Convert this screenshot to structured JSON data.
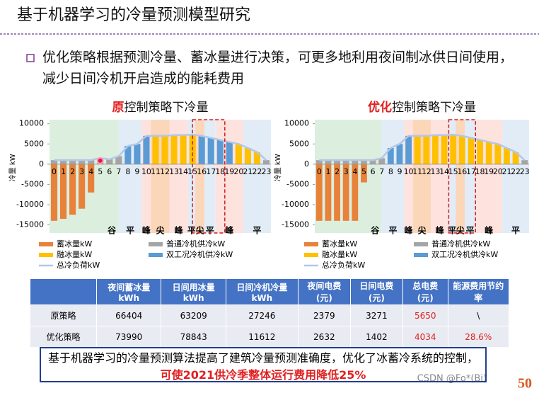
{
  "slide_title": "基于机器学习的冷量预测模型研究",
  "bullet": "优化策略根据预测冷量、蓄冰量进行决策，可更多地利用夜间制冰供日间使用，减少日间冷机开启造成的能耗费用",
  "chart_data": [
    {
      "type": "bar",
      "title_highlight": "原",
      "title": "控制策略下冷量",
      "y_label": "冷量 kW",
      "categories": [
        "0",
        "1",
        "2",
        "3",
        "4",
        "5",
        "6",
        "7",
        "8",
        "9",
        "10",
        "11",
        "12",
        "13",
        "14",
        "15",
        "16",
        "17",
        "18",
        "19",
        "20",
        "21",
        "22",
        "23"
      ],
      "ylim": [
        -17000,
        11000
      ],
      "yticks": [
        10000,
        5000,
        0,
        -5000,
        -10000,
        -15000
      ],
      "period_labels": [
        "谷",
        "平",
        "峰",
        "尖",
        "峰",
        "平",
        "尖",
        "平",
        "峰",
        "平"
      ],
      "series": [
        {
          "name": "蓄冰量kW",
          "color": "#e8823a",
          "kind": "bar",
          "values": [
            -14000,
            -13500,
            -12500,
            -11000,
            -7000,
            null,
            null,
            null,
            null,
            null,
            null,
            null,
            null,
            null,
            null,
            null,
            null,
            null,
            null,
            null,
            null,
            null,
            null,
            null
          ]
        },
        {
          "name": "普通冷机供冷kW",
          "color": "#a5a5a5",
          "kind": "bar",
          "values": [
            1000,
            1000,
            1000,
            1000,
            1000,
            1500,
            1200,
            2000,
            null,
            null,
            null,
            null,
            null,
            null,
            null,
            null,
            null,
            null,
            null,
            null,
            null,
            null,
            null,
            1000
          ]
        },
        {
          "name": "融冰量kW",
          "color": "#ffc000",
          "kind": "bar",
          "values": [
            null,
            null,
            null,
            null,
            null,
            null,
            null,
            null,
            null,
            null,
            null,
            7000,
            7000,
            7200,
            7200,
            7300,
            null,
            null,
            null,
            null,
            5000,
            4000,
            3000,
            null
          ]
        },
        {
          "name": "双工况冷机供冷kW",
          "color": "#5b9bd5",
          "kind": "bar",
          "values": [
            null,
            null,
            null,
            null,
            null,
            null,
            null,
            null,
            4500,
            5000,
            7000,
            null,
            null,
            null,
            null,
            null,
            7000,
            6500,
            6000,
            5500,
            null,
            null,
            null,
            null
          ]
        },
        {
          "name": "总冷负荷kW",
          "color": "#b4c7e7",
          "kind": "line",
          "values": [
            1000,
            1000,
            1000,
            1000,
            1000,
            1500,
            1200,
            2000,
            4500,
            5000,
            7000,
            7000,
            7000,
            7200,
            7200,
            7300,
            7000,
            6500,
            6000,
            5500,
            5000,
            4000,
            3000,
            1000
          ]
        }
      ]
    },
    {
      "type": "bar",
      "title_highlight": "优化",
      "title": "控制策略下冷量",
      "y_label": "冷量 kW",
      "categories": [
        "0",
        "1",
        "2",
        "3",
        "4",
        "5",
        "6",
        "7",
        "8",
        "9",
        "10",
        "11",
        "12",
        "13",
        "14",
        "15",
        "16",
        "17",
        "18",
        "19",
        "20",
        "21",
        "22",
        "23"
      ],
      "ylim": [
        -17000,
        11000
      ],
      "yticks": [
        10000,
        5000,
        0,
        -5000,
        -10000,
        -15000
      ],
      "period_labels": [
        "谷",
        "平",
        "峰",
        "尖",
        "峰",
        "平",
        "尖",
        "平",
        "峰",
        "平"
      ],
      "series": [
        {
          "name": "蓄冰量kW",
          "color": "#e8823a",
          "kind": "bar",
          "values": [
            -14000,
            -14000,
            -14000,
            -14000,
            -14000,
            -4500,
            null,
            null,
            null,
            null,
            null,
            null,
            null,
            null,
            null,
            null,
            null,
            null,
            null,
            null,
            null,
            null,
            null,
            null
          ]
        },
        {
          "name": "普通冷机供冷kW",
          "color": "#a5a5a5",
          "kind": "bar",
          "values": [
            1000,
            1000,
            1000,
            1000,
            1000,
            1000,
            1000,
            1500,
            null,
            null,
            null,
            null,
            null,
            null,
            null,
            null,
            null,
            null,
            null,
            null,
            null,
            null,
            null,
            1000
          ]
        },
        {
          "name": "融冰量kW",
          "color": "#ffc000",
          "kind": "bar",
          "values": [
            null,
            null,
            null,
            null,
            null,
            null,
            null,
            null,
            null,
            null,
            null,
            7000,
            7000,
            7200,
            7200,
            7300,
            7000,
            6500,
            6000,
            5500,
            5000,
            4000,
            3000,
            null
          ]
        },
        {
          "name": "双工况冷机供冷kW",
          "color": "#5b9bd5",
          "kind": "bar",
          "values": [
            null,
            null,
            null,
            null,
            null,
            null,
            null,
            null,
            4000,
            5000,
            7000,
            null,
            null,
            null,
            null,
            null,
            null,
            null,
            null,
            null,
            null,
            null,
            null,
            null
          ]
        },
        {
          "name": "总冷负荷kW",
          "color": "#b4c7e7",
          "kind": "line",
          "values": [
            1000,
            1000,
            1000,
            1000,
            1000,
            1000,
            1000,
            1500,
            4000,
            5000,
            7000,
            7000,
            7000,
            7200,
            7200,
            7300,
            7000,
            6500,
            6000,
            5500,
            5000,
            4000,
            3000,
            1000
          ]
        }
      ]
    }
  ],
  "table": {
    "header": [
      "",
      "夜间蓄冰量kWh",
      "日间用冰量kWh",
      "日间冷机冷量kWh",
      "夜间电费(元)",
      "日间电费(元)",
      "总电费(元)",
      "能源费用节约率"
    ],
    "rows": [
      [
        "原策略",
        66404,
        63209,
        27246,
        2379,
        3271,
        5650,
        "\\"
      ],
      [
        "优化策略",
        73990,
        78843,
        11612,
        2632,
        1402,
        4034,
        "28.6%"
      ]
    ]
  },
  "summary": {
    "text": "基于机器学习的冷量预测算法提高了建筑冷量预测准确度，优化了冰蓄冷系统的控制，",
    "highlight": "可使2021供冷季整体运行费用降低25%"
  },
  "footer": "CSDN @Fo*(Bi)",
  "page_number": "50"
}
